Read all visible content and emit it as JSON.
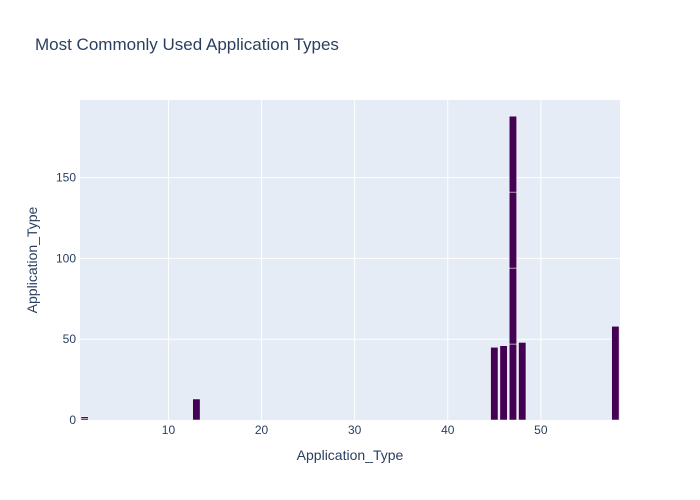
{
  "chart_data": {
    "type": "bar",
    "title": "Most Commonly Used Application Types",
    "xlabel": "Application_Type",
    "ylabel": "Application_Type",
    "xlim": [
      0.5,
      58.5
    ],
    "ylim": [
      0,
      198
    ],
    "xticks": [
      10,
      20,
      30,
      40,
      50
    ],
    "yticks": [
      0,
      50,
      100,
      150
    ],
    "grid": true,
    "legend": "none",
    "bar_color": "#440154",
    "bar_outline_color": "#ffffff",
    "plot_background": "#e5ecf6",
    "bars": [
      {
        "x": 1,
        "segments": [
          1,
          1
        ]
      },
      {
        "x": 13,
        "segments": [
          13
        ]
      },
      {
        "x": 45,
        "segments": [
          45
        ]
      },
      {
        "x": 46,
        "segments": [
          46
        ]
      },
      {
        "x": 47,
        "segments": [
          47,
          47,
          47,
          47
        ]
      },
      {
        "x": 48,
        "segments": [
          48
        ]
      },
      {
        "x": 58,
        "segments": [
          58
        ]
      }
    ]
  }
}
